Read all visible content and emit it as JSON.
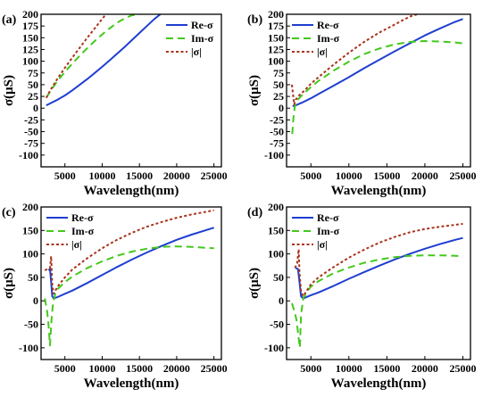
{
  "chart_data": [
    {
      "panel": "(a)",
      "type": "line",
      "xlabel": "Wavelength(nm)",
      "ylabel": "σ(μS)",
      "xlim": [
        1800,
        26000
      ],
      "ylim": [
        -125,
        200
      ],
      "x_ticks": [
        5000,
        10000,
        15000,
        20000,
        25000
      ],
      "y_ticks": [
        -100,
        -75,
        -50,
        -25,
        0,
        25,
        50,
        75,
        100,
        125,
        150,
        175,
        200
      ],
      "legend_position": "top-right",
      "series": [
        {
          "name": "Re-σ",
          "color": "#1f3fcf",
          "dash": "solid",
          "x": [
            2500,
            3000,
            4000,
            5000,
            6000,
            7000,
            8000,
            9000,
            10000,
            11000,
            12000,
            13000,
            14000,
            15000,
            16000,
            17000,
            17800
          ],
          "y": [
            6,
            10,
            18,
            27,
            38,
            50,
            62,
            75,
            88,
            102,
            116,
            130,
            145,
            160,
            175,
            190,
            200
          ]
        },
        {
          "name": "Im-σ",
          "color": "#44c81c",
          "dash": "dashed",
          "x": [
            2500,
            3000,
            4000,
            5000,
            6000,
            7000,
            8000,
            9000,
            10000,
            11000,
            12000,
            13000,
            14000,
            15000
          ],
          "y": [
            22,
            35,
            58,
            77,
            95,
            112,
            128,
            143,
            157,
            170,
            182,
            191,
            198,
            200
          ]
        },
        {
          "name": "|σ|",
          "color": "#a8341c",
          "dash": "dotted",
          "x": [
            2500,
            3000,
            4000,
            5000,
            6000,
            7000,
            8000,
            9000,
            10000,
            10500
          ],
          "y": [
            22,
            37,
            63,
            86,
            108,
            129,
            150,
            170,
            190,
            200
          ]
        }
      ]
    },
    {
      "panel": "(b)",
      "type": "line",
      "xlabel": "Wavelength(nm)",
      "ylabel": "σ(μS)",
      "xlim": [
        1800,
        26000
      ],
      "ylim": [
        -125,
        200
      ],
      "x_ticks": [
        5000,
        10000,
        15000,
        20000,
        25000
      ],
      "y_ticks": [
        -100,
        -75,
        -50,
        -25,
        0,
        25,
        50,
        75,
        100,
        125,
        150,
        175,
        200
      ],
      "legend_position": "top-left",
      "series": [
        {
          "name": "Re-σ",
          "color": "#1f3fcf",
          "dash": "solid",
          "x": [
            2600,
            3000,
            4000,
            5000,
            6000,
            8000,
            10000,
            12000,
            14000,
            16000,
            18000,
            20000,
            22000,
            24000,
            25000
          ],
          "y": [
            4,
            6,
            13,
            21,
            30,
            48,
            66,
            85,
            103,
            121,
            138,
            155,
            170,
            184,
            190
          ]
        },
        {
          "name": "Im-σ",
          "color": "#44c81c",
          "dash": "dashed",
          "x": [
            2550,
            2700,
            2900,
            3100,
            3500,
            4000,
            5000,
            6000,
            8000,
            10000,
            12000,
            14000,
            16000,
            18000,
            20000,
            22000,
            24000,
            25000
          ],
          "y": [
            -55,
            -20,
            5,
            15,
            22,
            30,
            45,
            58,
            80,
            99,
            115,
            127,
            136,
            141,
            143,
            142,
            140,
            138
          ]
        },
        {
          "name": "|σ|",
          "color": "#a8341c",
          "dash": "dotted",
          "x": [
            2500,
            2650,
            2800,
            3000,
            3300,
            4000,
            5000,
            6000,
            8000,
            10000,
            12000,
            14000,
            16000,
            18000,
            19000
          ],
          "y": [
            50,
            30,
            8,
            18,
            25,
            35,
            52,
            66,
            93,
            118,
            141,
            161,
            178,
            195,
            200
          ]
        }
      ]
    },
    {
      "panel": "(c)",
      "type": "line",
      "xlabel": "Wavelength(nm)",
      "ylabel": "σ(μS)",
      "xlim": [
        1800,
        26000
      ],
      "ylim": [
        -125,
        200
      ],
      "x_ticks": [
        5000,
        10000,
        15000,
        20000,
        25000
      ],
      "y_ticks": [
        -100,
        -50,
        0,
        50,
        100,
        150,
        200
      ],
      "legend_position": "top-left",
      "series": [
        {
          "name": "Re-σ",
          "color": "#1f3fcf",
          "dash": "solid",
          "x": [
            2800,
            3000,
            3150,
            3300,
            3500,
            4000,
            5000,
            6000,
            8000,
            10000,
            12000,
            14000,
            16000,
            18000,
            20000,
            22000,
            24000,
            25000
          ],
          "y": [
            65,
            68,
            40,
            10,
            5,
            8,
            15,
            22,
            38,
            55,
            72,
            88,
            103,
            117,
            130,
            141,
            151,
            156
          ]
        },
        {
          "name": "Im-σ",
          "color": "#44c81c",
          "dash": "dashed",
          "x": [
            2300,
            2600,
            2800,
            3000,
            3200,
            3400,
            3700,
            4000,
            5000,
            6000,
            8000,
            10000,
            12000,
            14000,
            16000,
            18000,
            20000,
            22000,
            24000,
            25000
          ],
          "y": [
            5,
            -20,
            -50,
            -95,
            -40,
            -5,
            15,
            25,
            40,
            52,
            70,
            84,
            96,
            105,
            111,
            115,
            116,
            115,
            113,
            112
          ]
        },
        {
          "name": "|σ|",
          "color": "#a8341c",
          "dash": "dotted",
          "x": [
            2300,
            2700,
            3000,
            3150,
            3300,
            3500,
            4000,
            5000,
            6000,
            8000,
            10000,
            12000,
            14000,
            16000,
            18000,
            20000,
            22000,
            24000,
            25000
          ],
          "y": [
            65,
            68,
            70,
            95,
            35,
            15,
            30,
            50,
            67,
            91,
            112,
            130,
            145,
            158,
            168,
            177,
            184,
            190,
            193
          ]
        }
      ]
    },
    {
      "panel": "(d)",
      "type": "line",
      "xlabel": "Wavelength(nm)",
      "ylabel": "σ(μS)",
      "xlim": [
        1800,
        26000
      ],
      "ylim": [
        -125,
        200
      ],
      "x_ticks": [
        5000,
        10000,
        15000,
        20000,
        25000
      ],
      "y_ticks": [
        -100,
        -50,
        0,
        50,
        100,
        150,
        200
      ],
      "legend_position": "top-left",
      "series": [
        {
          "name": "Re-σ",
          "color": "#1f3fcf",
          "dash": "solid",
          "x": [
            3000,
            3300,
            3500,
            3700,
            4000,
            5000,
            6000,
            8000,
            10000,
            12000,
            14000,
            16000,
            18000,
            20000,
            22000,
            24000,
            25000
          ],
          "y": [
            70,
            68,
            40,
            10,
            5,
            12,
            18,
            32,
            47,
            61,
            75,
            88,
            100,
            111,
            121,
            130,
            134
          ]
        },
        {
          "name": "Im-σ",
          "color": "#44c81c",
          "dash": "dashed",
          "x": [
            2500,
            2800,
            3100,
            3400,
            3550,
            3700,
            4000,
            4500,
            5000,
            6000,
            8000,
            10000,
            12000,
            14000,
            16000,
            18000,
            20000,
            22000,
            24000,
            25000
          ],
          "y": [
            -5,
            -20,
            -40,
            -80,
            -100,
            -30,
            5,
            20,
            30,
            42,
            59,
            71,
            81,
            88,
            93,
            96,
            97,
            97,
            96,
            95
          ]
        },
        {
          "name": "|σ|",
          "color": "#a8341c",
          "dash": "dotted",
          "x": [
            2900,
            3200,
            3400,
            3500,
            3700,
            4000,
            5000,
            6000,
            8000,
            10000,
            12000,
            14000,
            16000,
            18000,
            20000,
            22000,
            24000,
            25000
          ],
          "y": [
            70,
            80,
            110,
            60,
            20,
            10,
            35,
            50,
            72,
            92,
            109,
            124,
            136,
            146,
            153,
            158,
            162,
            164
          ]
        }
      ]
    }
  ]
}
